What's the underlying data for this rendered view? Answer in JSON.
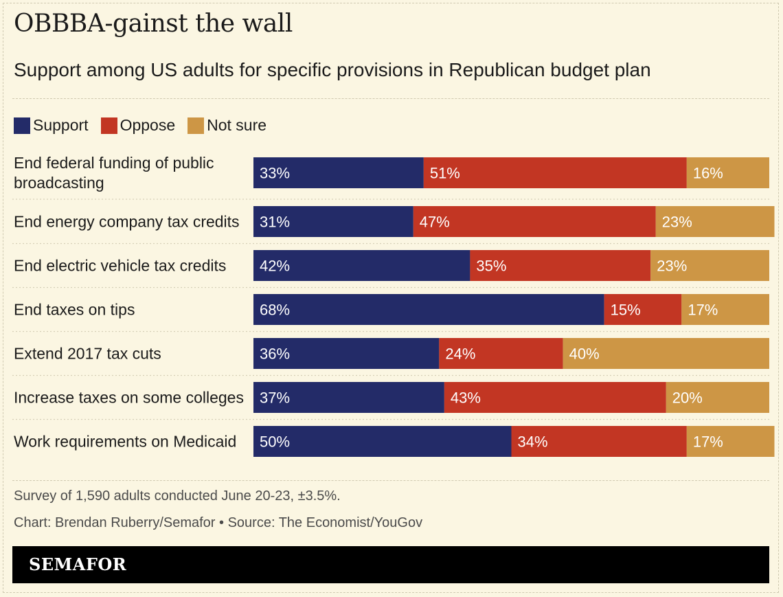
{
  "title": "OBBBA-gainst the wall",
  "subtitle": "Support among US adults for specific provisions in Republican budget plan",
  "legend": {
    "support": "Support",
    "oppose": "Oppose",
    "not_sure": "Not sure"
  },
  "colors": {
    "support": "#232b68",
    "oppose": "#c23623",
    "not_sure": "#cd9645",
    "background": "#fbf6e2"
  },
  "chart_data": {
    "type": "bar",
    "orientation": "horizontal",
    "stacked": true,
    "title": "OBBBA-gainst the wall",
    "subtitle": "Support among US adults for specific provisions in Republican budget plan",
    "unit": "%",
    "xlim": [
      0,
      100
    ],
    "categories": [
      [
        "End federal funding of public",
        "broadcasting"
      ],
      [
        "End energy company tax credits"
      ],
      [
        "End electric vehicle tax credits"
      ],
      [
        "End taxes on tips"
      ],
      [
        "Extend 2017 tax cuts"
      ],
      [
        "Increase taxes on some colleges"
      ],
      [
        "Work requirements on Medicaid"
      ]
    ],
    "series": [
      {
        "name": "Support",
        "key": "support",
        "values": [
          33,
          31,
          42,
          68,
          36,
          37,
          50
        ]
      },
      {
        "name": "Oppose",
        "key": "oppose",
        "values": [
          51,
          47,
          35,
          15,
          24,
          43,
          34
        ]
      },
      {
        "name": "Not sure",
        "key": "not_sure",
        "values": [
          16,
          23,
          23,
          17,
          40,
          20,
          17
        ]
      }
    ]
  },
  "notes": {
    "survey": "Survey of 1,590 adults conducted June 20-23, ±3.5%.",
    "credit": "Chart: Brendan Ruberry/Semafor • Source: The Economist/YouGov"
  },
  "brand": "SEMAFOR"
}
